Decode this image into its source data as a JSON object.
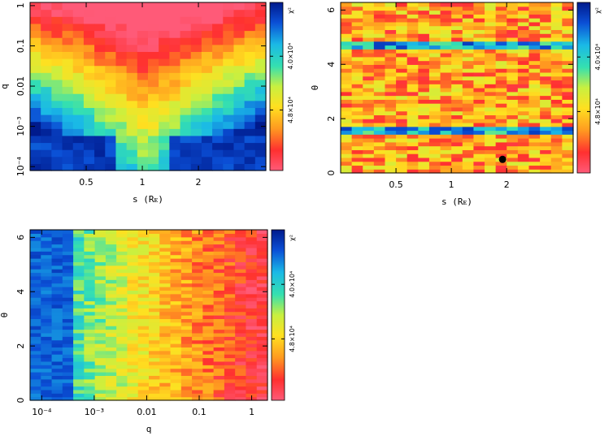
{
  "chart_data": [
    {
      "type": "heatmap",
      "xlabel": "s (R_E)",
      "ylabel": "q",
      "xscale": "log",
      "yscale": "log",
      "xticks": [
        {
          "value": 0.5,
          "label": "0.5"
        },
        {
          "value": 1,
          "label": "1"
        },
        {
          "value": 2,
          "label": "2"
        }
      ],
      "yticks": [
        {
          "value": 1,
          "label": "1"
        },
        {
          "value": 0.1,
          "label": "0.1"
        },
        {
          "value": 0.01,
          "label": "0.01"
        },
        {
          "value": 0.001,
          "label": "10^-3"
        },
        {
          "value": 0.0001,
          "label": "10^-4"
        }
      ],
      "xlim": [
        0.25,
        4.6
      ],
      "ylim": [
        8e-05,
        1.2
      ],
      "colorbar": {
        "title": "χ²",
        "ticks": [
          "4.0×10^4",
          "4.8×10^4"
        ]
      },
      "description_of_pattern": "minimum chi-square (red) forms a V centered at s≈1 widening toward large q; blue at small q away from s=1"
    },
    {
      "type": "heatmap",
      "xlabel": "s (R_E)",
      "ylabel": "θ",
      "xscale": "log",
      "yscale": "linear",
      "xticks": [
        {
          "value": 0.5,
          "label": "0.5"
        },
        {
          "value": 1,
          "label": "1"
        },
        {
          "value": 2,
          "label": "2"
        }
      ],
      "yticks": [
        {
          "value": 0,
          "label": "0"
        },
        {
          "value": 2,
          "label": "2"
        },
        {
          "value": 4,
          "label": "4"
        },
        {
          "value": 6,
          "label": "6"
        }
      ],
      "xlim": [
        0.25,
        4.6
      ],
      "ylim": [
        0,
        6.28
      ],
      "colorbar": {
        "title": "χ²",
        "ticks": [
          "4.0×10^4",
          "4.8×10^4"
        ]
      },
      "marker": {
        "s": 1.9,
        "theta": 0.5,
        "shape": "filled-circle"
      },
      "description_of_pattern": "mostly red/yellow, horizontal blue bands near θ≈1.6 and θ≈4.7"
    },
    {
      "type": "heatmap",
      "xlabel": "q",
      "ylabel": "θ",
      "xscale": "log",
      "yscale": "linear",
      "xticks": [
        {
          "value": 0.0001,
          "label": "10^-4"
        },
        {
          "value": 0.001,
          "label": "10^-3"
        },
        {
          "value": 0.01,
          "label": "0.01"
        },
        {
          "value": 0.1,
          "label": "0.1"
        },
        {
          "value": 1,
          "label": "1"
        }
      ],
      "yticks": [
        {
          "value": 0,
          "label": "0"
        },
        {
          "value": 2,
          "label": "2"
        },
        {
          "value": 4,
          "label": "4"
        },
        {
          "value": 6,
          "label": "6"
        }
      ],
      "xlim": [
        6e-05,
        2.0
      ],
      "ylim": [
        0,
        6.28
      ],
      "colorbar": {
        "title": "χ²",
        "ticks": [
          "4.0×10^4",
          "4.8×10^4"
        ]
      },
      "description_of_pattern": "blue at small q (left), transitioning through green/yellow to red at larger q"
    }
  ]
}
